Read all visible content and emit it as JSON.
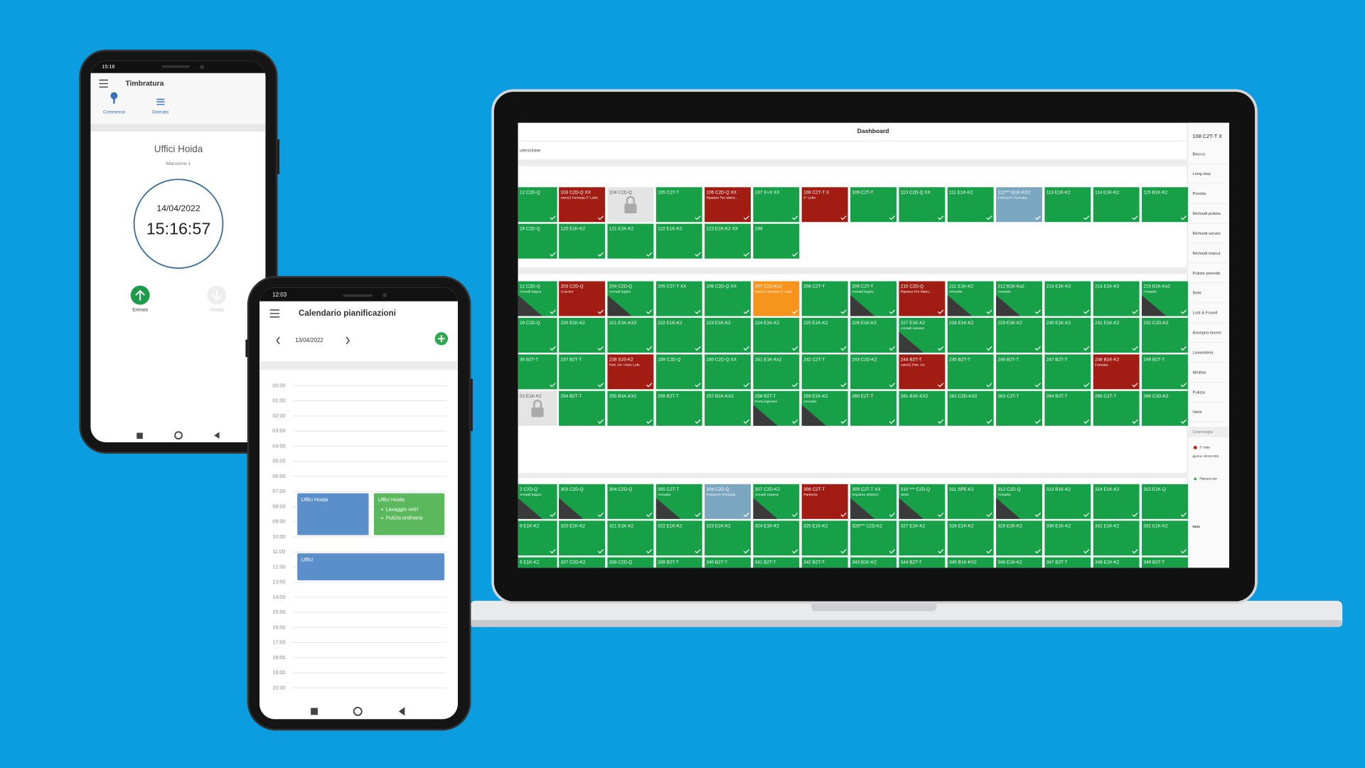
{
  "phone_timbratura": {
    "status_time": "15:16",
    "title": "Timbratura",
    "tabs": [
      "Commesse",
      "Giornata"
    ],
    "location": "Uffici Hoida",
    "role": "Mansione 1",
    "date": "14/04/2022",
    "time": "15:16:57",
    "buttons": [
      "Entrata",
      "Uscita"
    ]
  },
  "phone_calendar": {
    "status_time": "12:03",
    "title": "Calendario pianificazioni",
    "date": "13/04/2022",
    "hours": [
      "00:00",
      "01:00",
      "02:00",
      "03:00",
      "04:00",
      "05:00",
      "06:00",
      "07:00",
      "08:00",
      "09:00",
      "10:00",
      "11:00",
      "12:00",
      "13:00",
      "14:00",
      "15:00",
      "16:00",
      "17:00",
      "18:00",
      "19:00",
      "20:00"
    ],
    "events": [
      {
        "title": "Uffici Hoida",
        "color": "#5b8fcb"
      },
      {
        "title": "Uffici Hoida",
        "color": "#5cb85c",
        "items": [
          "Lavaggio vetri",
          "Pulizia ordinaria"
        ]
      },
      {
        "title": "Uffici",
        "color": "#5b8fcb"
      }
    ]
  },
  "dashboard": {
    "title": "Dashboard",
    "tab": "utenzione",
    "tile_color": "#17a048",
    "rows": [
      [
        {
          "label": "12 C2D-Q"
        },
        {
          "label": "103 C2D-Q XX",
          "sub": "cam22 Fermata 3° Letto",
          "color": "#a11c12"
        },
        {
          "label": "104 C2D-Q",
          "color": "#e4e4e4",
          "locked": true
        },
        {
          "label": "105 C2T-T"
        },
        {
          "label": "106 C2D-Q XX",
          "sub": "Ripasso Per Manu...",
          "color": "#a11c12"
        },
        {
          "label": "107 X+X XX"
        },
        {
          "label": "108 C2T-T X",
          "sub": "3° Letto",
          "color": "#a11c12"
        },
        {
          "label": "109 C2T-T"
        },
        {
          "label": "110 C2D-Q XX"
        },
        {
          "label": "111 E1K-K2"
        },
        {
          "label": "112*** B1K-KX2",
          "sub": "Franca R. Fermata",
          "color": "#7ba6bf"
        },
        {
          "label": "113 E1K-K2"
        },
        {
          "label": "114 E1K-K2"
        },
        {
          "label": "115 B1K-K2"
        }
      ],
      [
        {
          "label": "19 C2D-Q"
        },
        {
          "label": "120 E1K-K2"
        },
        {
          "label": "121 E1K-K2"
        },
        {
          "label": "122 E1K-K2"
        },
        {
          "label": "123 E1K-K2 XX"
        },
        {
          "label": "199"
        }
      ],
      [
        {
          "label": "12 C2D-Q",
          "sub": "Armadi bagno",
          "corner": true
        },
        {
          "label": "203 C2D-Q",
          "sub": "Cuscino",
          "color": "#a11c12"
        },
        {
          "label": "204 C2D-Q",
          "sub": "Armadi bagno",
          "corner": true
        },
        {
          "label": "205 C2T-T XX"
        },
        {
          "label": "206 C2D-Q XX"
        },
        {
          "label": "207 C2D-Kx2",
          "sub": "cam21 Fermata 3° Letto",
          "color": "#f7941d"
        },
        {
          "label": "208 C2T-T"
        },
        {
          "label": "209 C2T-T",
          "sub": "Armadi bagno",
          "corner": true
        },
        {
          "label": "210 C2D-Q",
          "sub": "Ripasso Per Manu...",
          "color": "#a11c12"
        },
        {
          "label": "211 E1K-K2",
          "sub": "Armadio",
          "corner": true
        },
        {
          "label": "212 B1K-Kx2",
          "sub": "Armadio",
          "corner": true
        },
        {
          "label": "213 E1K-K2"
        },
        {
          "label": "214 E1K-K2"
        },
        {
          "label": "215 B1K-Kx2",
          "sub": "Armadio",
          "corner": true
        }
      ],
      [
        {
          "label": "19 C2D-Q"
        },
        {
          "label": "220 E1K-K2"
        },
        {
          "label": "221 E1K-KX2"
        },
        {
          "label": "222 E1K-K2"
        },
        {
          "label": "223 E1K-K2"
        },
        {
          "label": "224 E1K-K2"
        },
        {
          "label": "225 E1K-K2"
        },
        {
          "label": "226 E1K-K2"
        },
        {
          "label": "227 E1K-K2",
          "sub": "Armadi camera",
          "corner": true
        },
        {
          "label": "228 E1K-K2"
        },
        {
          "label": "229 E1K-K2"
        },
        {
          "label": "230 E1K-K2"
        },
        {
          "label": "231 E1K-K2"
        },
        {
          "label": "232 C2D-K2"
        }
      ],
      [
        {
          "label": "36 B2T-T"
        },
        {
          "label": "237 B2T-T"
        },
        {
          "label": "238 SJS-K2",
          "sub": "Part. Arr. Unire Letti",
          "color": "#a11c12"
        },
        {
          "label": "239 C2D-Q"
        },
        {
          "label": "240 C2D-Q XX"
        },
        {
          "label": "241 E1K-Kx2"
        },
        {
          "label": "242 C2T-T"
        },
        {
          "label": "243 C2D-K2"
        },
        {
          "label": "244 B2T-T",
          "sub": "cam22 Part. Arr.",
          "color": "#a11c12"
        },
        {
          "label": "245 B2T-T"
        },
        {
          "label": "246 B2T-T"
        },
        {
          "label": "247 B2T-T"
        },
        {
          "label": "248 B1K-K2",
          "sub": "Fermata",
          "color": "#a11c12"
        },
        {
          "label": "249 B2T-T"
        }
      ],
      [
        {
          "label": "53 E1K-K2",
          "color": "#e4e4e4",
          "locked": true
        },
        {
          "label": "254 B2T-T"
        },
        {
          "label": "255 B1K-KX2"
        },
        {
          "label": "256 B2T-T"
        },
        {
          "label": "257 B1K-KX2"
        },
        {
          "label": "258 B2T-T",
          "sub": "Porta ingresso",
          "corner": true
        },
        {
          "label": "259 E1K-K2",
          "sub": "Armadio",
          "corner": true
        },
        {
          "label": "260 E2T-T"
        },
        {
          "label": "261 B1K-KX2"
        },
        {
          "label": "262 C2D-KX2"
        },
        {
          "label": "263 C2T-T"
        },
        {
          "label": "264 B2T-T"
        },
        {
          "label": "265 C2T-T"
        },
        {
          "label": "266 C2D-K2"
        }
      ],
      [
        {
          "label": "2 C2D-Q",
          "sub": "Armadi bagno",
          "corner": true
        },
        {
          "label": "303 C2D-Q",
          "corner": true
        },
        {
          "label": "304 C2D-Q"
        },
        {
          "label": "305 C2T-T",
          "sub": "Armadio",
          "corner": true
        },
        {
          "label": "306 C2D-Q",
          "sub": "Franca R. Fermata",
          "color": "#7ba6bf"
        },
        {
          "label": "307 C2D-K2",
          "sub": "Armadi camera",
          "corner": true
        },
        {
          "label": "308 C2T-T",
          "sub": "Partenza",
          "color": "#a11c12"
        },
        {
          "label": "309 C2T-T XX",
          "sub": "Impianto elettrico",
          "corner": true
        },
        {
          "label": "310 *** C2D-Q",
          "sub": "Sidat",
          "corner": true
        },
        {
          "label": "311 SPE-K2"
        },
        {
          "label": "312 C2D-Q",
          "sub": "Armadio",
          "corner": true
        },
        {
          "label": "313 B1K-K2"
        },
        {
          "label": "314 E1K-K2"
        },
        {
          "label": "315 E1K-Q"
        }
      ],
      [
        {
          "label": "9 E1K-K2"
        },
        {
          "label": "320 E1K-K2"
        },
        {
          "label": "321 E1K-K2"
        },
        {
          "label": "322 E1K-K2"
        },
        {
          "label": "323 E1K-K2"
        },
        {
          "label": "324 E1K-K2"
        },
        {
          "label": "325 E1K-K2"
        },
        {
          "label": "326*** C2D-K2"
        },
        {
          "label": "327 E1K-K2"
        },
        {
          "label": "328 E1K-K2"
        },
        {
          "label": "329 E1K-K2"
        },
        {
          "label": "330 E1K-K2"
        },
        {
          "label": "331 E1K-K2"
        },
        {
          "label": "332 E1K-K2"
        }
      ],
      [
        {
          "label": "6 E1K-K2"
        },
        {
          "label": "337 C2D-K2"
        },
        {
          "label": "338 C2D-Q"
        },
        {
          "label": "339 B2T-T"
        },
        {
          "label": "340 B2T-T"
        },
        {
          "label": "341 B2T-T"
        },
        {
          "label": "342 B2T-T"
        },
        {
          "label": "343 B1K-K2"
        },
        {
          "label": "344 B2T-T"
        },
        {
          "label": "345 B1K-KX2"
        },
        {
          "label": "346 E1K-K2"
        },
        {
          "label": "347 B2T-T"
        },
        {
          "label": "348 E1K-K2"
        },
        {
          "label": "349 B2T-T"
        }
      ]
    ],
    "sidebar": {
      "room": "108 C2T-T X",
      "items": [
        "Blocco",
        "Long stay",
        "Priorita",
        "Richiedi pulizia",
        "Richiedi servizi",
        "Richiedi manut",
        "Pulizie periodic",
        "Note",
        "Lost & Found",
        "Assegna lavoro",
        "Lavanderia",
        "Minibar",
        "Pulizia",
        "Varie"
      ],
      "history_title": "Cronologia",
      "history": [
        "3° letto",
        "giorno: 29-04-202",
        "Ripasso per",
        "Nota"
      ]
    }
  }
}
